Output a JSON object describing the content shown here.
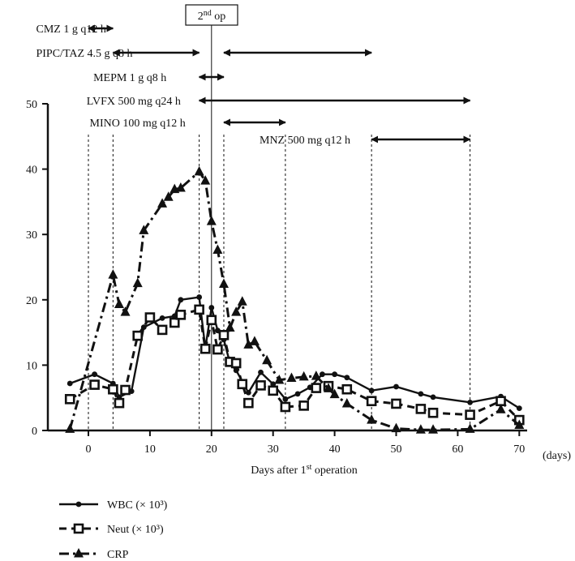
{
  "chart_data": {
    "type": "line",
    "xlabel": "Days after 1st operation",
    "xlabel_sup": "st",
    "x_unit": "(days)",
    "xlim": [
      -4,
      72
    ],
    "ylim": [
      0,
      50
    ],
    "x_ticks": [
      0,
      10,
      20,
      30,
      40,
      50,
      60,
      70
    ],
    "y_ticks": [
      0,
      10,
      20,
      30,
      40,
      50
    ],
    "grid": false,
    "legend_position": "bottom-left",
    "series": [
      {
        "name": "WBC (× 10³)",
        "marker": "circle",
        "line": "solid",
        "x": [
          -3,
          1,
          4,
          5,
          7,
          9,
          12,
          14,
          15,
          18,
          19,
          20,
          21,
          22,
          23,
          24,
          26,
          28,
          30,
          32,
          34,
          36,
          38,
          40,
          42,
          46,
          50,
          54,
          56,
          62,
          67,
          70
        ],
        "y": [
          7.2,
          8.6,
          7.2,
          5.1,
          6.0,
          15.8,
          17.2,
          17.5,
          20.0,
          20.4,
          12.6,
          18.8,
          15.3,
          13.9,
          10.3,
          9.2,
          5.8,
          8.9,
          7.1,
          4.8,
          5.6,
          6.6,
          8.6,
          8.6,
          8.1,
          6.1,
          6.7,
          5.6,
          5.1,
          4.3,
          5.2,
          3.4
        ]
      },
      {
        "name": "Neut (× 10³)",
        "marker": "square",
        "line": "dashed",
        "x": [
          -3,
          1,
          4,
          5,
          6,
          8,
          10,
          12,
          14,
          15,
          18,
          19,
          20,
          21,
          22,
          23,
          24,
          25,
          26,
          28,
          30,
          32,
          35,
          37,
          39,
          42,
          46,
          50,
          54,
          56,
          62,
          67,
          70
        ],
        "y": [
          4.8,
          7.0,
          6.3,
          4.2,
          6.2,
          14.5,
          17.3,
          15.4,
          16.5,
          17.7,
          18.5,
          12.5,
          16.9,
          12.4,
          14.6,
          10.5,
          10.3,
          7.1,
          4.2,
          6.9,
          6.1,
          3.6,
          3.8,
          6.5,
          6.8,
          6.3,
          4.5,
          4.1,
          3.3,
          2.7,
          2.4,
          4.5,
          1.6
        ]
      },
      {
        "name": "CRP",
        "marker": "triangle",
        "line": "dash-dot",
        "x": [
          -3,
          4,
          5,
          6,
          8,
          9,
          12,
          13,
          14,
          15,
          18,
          19,
          20,
          21,
          22,
          23,
          24,
          25,
          26,
          27,
          29,
          31,
          33,
          35,
          37,
          39,
          40,
          42,
          46,
          50,
          54,
          56,
          62,
          67,
          70
        ],
        "y": [
          0.2,
          23.8,
          19.3,
          18.1,
          22.5,
          30.6,
          34.7,
          35.7,
          36.9,
          37.1,
          39.6,
          38.2,
          32.0,
          27.6,
          22.4,
          15.7,
          18.1,
          19.7,
          13.1,
          13.6,
          10.7,
          7.7,
          8.0,
          8.2,
          8.3,
          6.4,
          5.5,
          4.1,
          1.6,
          0.3,
          0.1,
          0.1,
          0.2,
          3.2,
          0.8
        ]
      }
    ],
    "dashed_vlines_x": [
      0,
      4,
      18,
      22,
      32,
      46,
      62
    ],
    "op_line_x": 20,
    "op_box": {
      "label": "2",
      "sup": "nd",
      "rest": " op"
    },
    "regimens": [
      {
        "label": "CMZ 1 g q12 h",
        "segments": [
          [
            0,
            4
          ]
        ],
        "label_x": -8.5,
        "row": 0
      },
      {
        "label": "PIPC/TAZ 4.5 g q8 h",
        "segments": [
          [
            4,
            18
          ],
          [
            22,
            46
          ]
        ],
        "label_x": -8.5,
        "row": 1
      },
      {
        "label": "MEPM 1 g q8 h",
        "segments": [
          [
            18,
            22
          ]
        ],
        "label_x": 0.8,
        "row": 2
      },
      {
        "label": "LVFX 500 mg q24 h",
        "segments": [
          [
            18,
            62
          ]
        ],
        "label_x": -0.3,
        "row": 3
      },
      {
        "label": "MINO 100 mg q12 h",
        "segments": [
          [
            22,
            32
          ]
        ],
        "label_x": 0.2,
        "row": 4
      },
      {
        "label": "MNZ 500 mg q12 h",
        "segments": [
          [
            46,
            62
          ]
        ],
        "label_x": 27.8,
        "row": 5
      }
    ]
  }
}
